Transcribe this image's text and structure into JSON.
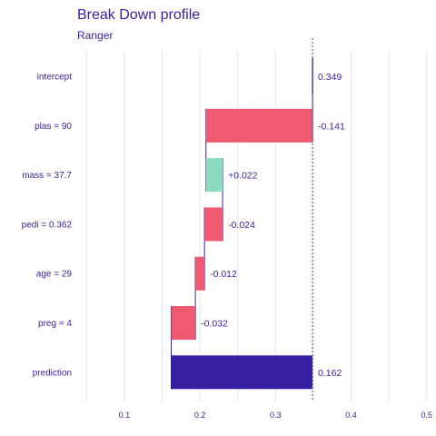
{
  "chart_data": {
    "type": "bar",
    "title": "Break Down profile",
    "subtitle": "Ranger",
    "xlim": [
      0.04,
      0.51
    ],
    "x_ticks": [
      0.1,
      0.2,
      0.3,
      0.4,
      0.5
    ],
    "x_tick_labels": [
      "0.1",
      "0.2",
      "0.3",
      "0.4",
      "0.5"
    ],
    "grid": true,
    "baseline": 0.349,
    "categories": [
      "intercept",
      "plas = 90",
      "mass = 37.7",
      "pedi = 0.362",
      "age = 29",
      "preg = 4",
      "prediction"
    ],
    "start": [
      0.349,
      0.208,
      0.23,
      0.206,
      0.194,
      0.162,
      0.162
    ],
    "end": [
      0.349,
      0.349,
      0.208,
      0.23,
      0.206,
      0.194,
      0.349
    ],
    "labels": [
      "0.349",
      "-0.141",
      "+0.022",
      "-0.024",
      "-0.012",
      "-0.032",
      "0.162"
    ],
    "kinds": [
      "intercept",
      "negative",
      "positive",
      "negative",
      "negative",
      "negative",
      "prediction"
    ]
  },
  "colors": {
    "negative": "#f05a71",
    "positive": "#8bdcbe",
    "prediction": "#371ea3",
    "text": "#371ea3",
    "grid": "#e6e6ee",
    "connector": "#371ea3"
  }
}
